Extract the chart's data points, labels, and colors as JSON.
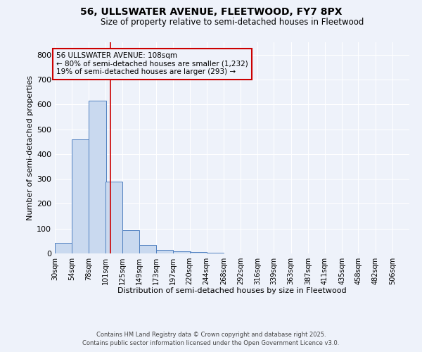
{
  "title1": "56, ULLSWATER AVENUE, FLEETWOOD, FY7 8PX",
  "title2": "Size of property relative to semi-detached houses in Fleetwood",
  "xlabel": "Distribution of semi-detached houses by size in Fleetwood",
  "ylabel": "Number of semi-detached properties",
  "bin_labels": [
    "30sqm",
    "54sqm",
    "78sqm",
    "101sqm",
    "125sqm",
    "149sqm",
    "173sqm",
    "197sqm",
    "220sqm",
    "244sqm",
    "268sqm",
    "292sqm",
    "316sqm",
    "339sqm",
    "363sqm",
    "387sqm",
    "411sqm",
    "435sqm",
    "458sqm",
    "482sqm",
    "506sqm"
  ],
  "bin_edges": [
    30,
    54,
    78,
    101,
    125,
    149,
    173,
    197,
    220,
    244,
    268,
    292,
    316,
    339,
    363,
    387,
    411,
    435,
    458,
    482,
    506
  ],
  "bar_heights": [
    42,
    460,
    615,
    290,
    93,
    35,
    15,
    8,
    5,
    2,
    0,
    0,
    0,
    0,
    0,
    0,
    0,
    0,
    0,
    0
  ],
  "bar_color": "#c9d9ef",
  "bar_edge_color": "#5080c0",
  "property_size": 108,
  "vline_color": "#cc0000",
  "annotation_title": "56 ULLSWATER AVENUE: 108sqm",
  "annotation_line1": "← 80% of semi-detached houses are smaller (1,232)",
  "annotation_line2": "19% of semi-detached houses are larger (293) →",
  "annotation_box_color": "#cc0000",
  "ylim": [
    0,
    850
  ],
  "yticks": [
    0,
    100,
    200,
    300,
    400,
    500,
    600,
    700,
    800
  ],
  "footer1": "Contains HM Land Registry data © Crown copyright and database right 2025.",
  "footer2": "Contains public sector information licensed under the Open Government Licence v3.0.",
  "bg_color": "#eef2fa",
  "plot_bg_color": "#eef2fa"
}
